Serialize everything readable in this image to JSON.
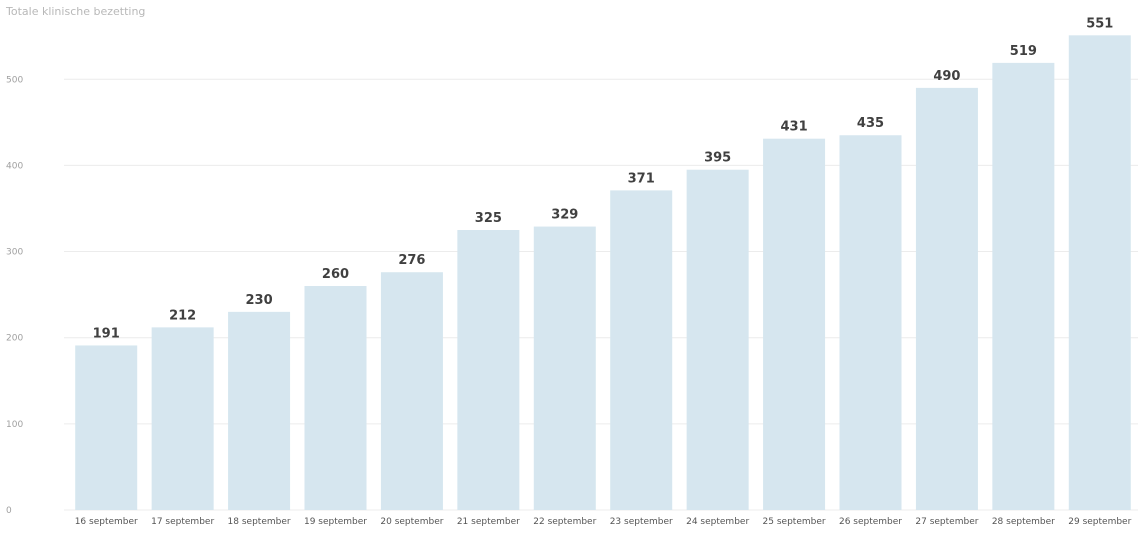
{
  "chart_data": {
    "type": "bar",
    "title": "Totale klinische bezetting",
    "xlabel": "",
    "ylabel": "",
    "categories": [
      "16 september",
      "17 september",
      "18 september",
      "19 september",
      "20 september",
      "21 september",
      "22 september",
      "23 september",
      "24 september",
      "25 september",
      "26 september",
      "27 september",
      "28 september",
      "29 september"
    ],
    "values": [
      191,
      212,
      230,
      260,
      276,
      325,
      329,
      371,
      395,
      431,
      435,
      490,
      519,
      551
    ],
    "data_labels": [
      "191",
      "212",
      "230",
      "260",
      "276",
      "325",
      "329",
      "371",
      "395",
      "431",
      "435",
      "490",
      "519",
      "551"
    ],
    "ylim": [
      0,
      560
    ],
    "yticks": [
      0,
      100,
      200,
      300,
      400,
      500
    ],
    "ytick_labels": [
      "0",
      "100",
      "200",
      "300",
      "400",
      "500"
    ],
    "grid": true,
    "legend": "none",
    "bar_color": "#d6e6ef",
    "gridline_color": "#ececec"
  }
}
